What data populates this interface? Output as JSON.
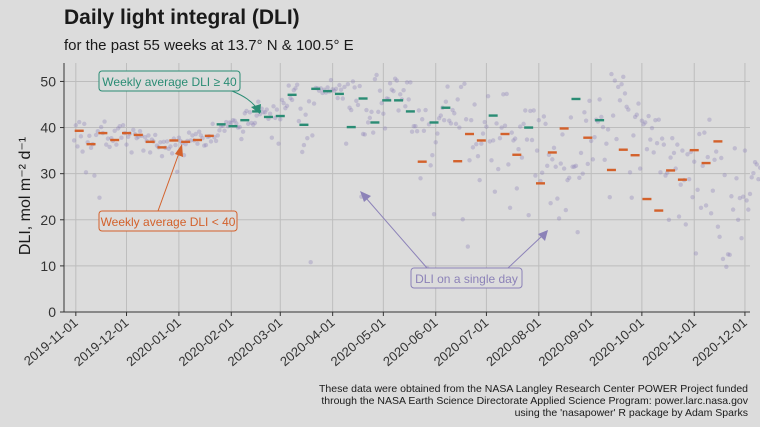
{
  "title": "Daily light integral (DLI)",
  "subtitle": "for the past 55 weeks at 13.7° N & 100.5° E",
  "caption": [
    "These data were obtained from the NASA Langley Research Center POWER Project funded",
    "through the NASA Earth Science Directorate Applied Science Program: power.larc.nasa.gov",
    "using the 'nasapower' R package by Adam Sparks"
  ],
  "colors": {
    "background": "#dcdcdc",
    "grid": "#bdbdbd",
    "high": "#2a8c74",
    "low": "#d3612b",
    "daily": "#8c82b8"
  },
  "annotations": {
    "high": "Weekly average DLI ≥ 40",
    "low": "Weekly average DLI < 40",
    "daily": "DLI on a single day"
  },
  "chart_data": {
    "type": "scatter",
    "ylabel": "DLI, mol m⁻² d⁻¹",
    "ylim": [
      0,
      54
    ],
    "yticks": [
      0,
      10,
      20,
      30,
      40,
      50
    ],
    "xlim": [
      "2019-10-25",
      "2020-12-04"
    ],
    "xticks": [
      "2019-11-01",
      "2019-12-01",
      "2020-01-01",
      "2020-02-01",
      "2020-03-01",
      "2020-04-01",
      "2020-05-01",
      "2020-06-01",
      "2020-07-01",
      "2020-08-01",
      "2020-09-01",
      "2020-10-01",
      "2020-11-01",
      "2020-12-01"
    ],
    "grid": true,
    "threshold": 40,
    "weekly_series": {
      "name": "Weekly average DLI",
      "dates": [
        "2019-11-03",
        "2019-11-10",
        "2019-11-17",
        "2019-11-24",
        "2019-12-01",
        "2019-12-08",
        "2019-12-15",
        "2019-12-22",
        "2019-12-29",
        "2020-01-05",
        "2020-01-12",
        "2020-01-19",
        "2020-01-26",
        "2020-02-02",
        "2020-02-09",
        "2020-02-16",
        "2020-02-23",
        "2020-03-01",
        "2020-03-08",
        "2020-03-15",
        "2020-03-22",
        "2020-03-29",
        "2020-04-05",
        "2020-04-12",
        "2020-04-19",
        "2020-04-26",
        "2020-05-03",
        "2020-05-10",
        "2020-05-17",
        "2020-05-24",
        "2020-05-31",
        "2020-06-07",
        "2020-06-14",
        "2020-06-21",
        "2020-06-28",
        "2020-07-05",
        "2020-07-12",
        "2020-07-19",
        "2020-07-26",
        "2020-08-02",
        "2020-08-09",
        "2020-08-16",
        "2020-08-23",
        "2020-08-30",
        "2020-09-06",
        "2020-09-13",
        "2020-09-20",
        "2020-09-27",
        "2020-10-04",
        "2020-10-11",
        "2020-10-18",
        "2020-10-25",
        "2020-11-01",
        "2020-11-08",
        "2020-11-15"
      ],
      "values": [
        39.3,
        36.4,
        38.8,
        37.3,
        38.8,
        38.4,
        36.9,
        35.7,
        37.2,
        36.9,
        37.3,
        38.2,
        40.7,
        40.3,
        41.6,
        43.5,
        42.3,
        42.5,
        47.1,
        40.6,
        48.4,
        47.9,
        47.3,
        40.1,
        46.3,
        41.1,
        45.9,
        45.9,
        43.5,
        32.6,
        41.1,
        44.3,
        32.7,
        38.6,
        37.2,
        42.6,
        38.6,
        34.1,
        40.0,
        27.9,
        34.6,
        39.8,
        46.2,
        37.8,
        41.6,
        30.8,
        35.2,
        34.0,
        24.5,
        22.0,
        30.7,
        28.7,
        35.1,
        32.3,
        37.0
      ]
    },
    "daily_series": {
      "name": "DLI on a single day",
      "start": "2019-10-31",
      "values": [
        37.2,
        40.5,
        35.9,
        41.2,
        38.1,
        34.8,
        40.8,
        30.3,
        36.8,
        38.2,
        35.6,
        36.4,
        29.6,
        38.4,
        39.2,
        24.8,
        40.1,
        38.8,
        41.3,
        36.3,
        37.6,
        35.8,
        37.7,
        37.1,
        39.3,
        36.3,
        39.8,
        40.3,
        37.8,
        40.5,
        38.8,
        36.3,
        38.0,
        38.7,
        34.6,
        39.5,
        38.6,
        37.7,
        38.0,
        39.2,
        38.2,
        35.0,
        37.9,
        37.1,
        38.3,
        34.6,
        37.4,
        37.0,
        38.4,
        36.1,
        35.7,
        36.8,
        33.8,
        36.9,
        35.6,
        37.0,
        35.4,
        35.9,
        34.4,
        37.6,
        36.2,
        30.4,
        37.8,
        37.1,
        36.6,
        34.0,
        36.4,
        37.1,
        38.9,
        37.2,
        38.3,
        37.2,
        38.6,
        36.5,
        39.1,
        38.3,
        37.7,
        36.1,
        36.2,
        38.0,
        38.1,
        37.0,
        40.8,
        37.9,
        37.1,
        38.3,
        39.4,
        40.3,
        40.4,
        39.3,
        41.2,
        40.3,
        41.1,
        41.0,
        41.6,
        41.5,
        40.9,
        40.0,
        40.1,
        37.5,
        39.1,
        43.1,
        43.6,
        40.8,
        43.3,
        41.0,
        40.6,
        41.0,
        42.6,
        45.6,
        42.9,
        44.1,
        43.3,
        43.3,
        43.9,
        41.9,
        43.0,
        37.8,
        44.6,
        42.1,
        43.9,
        36.5,
        41.8,
        46.0,
        45.3,
        44.2,
        44.7,
        49.1,
        46.4,
        46.0,
        48.1,
        48.5,
        49.3,
        41.4,
        44.1,
        34.7,
        36.2,
        42.8,
        37.7,
        45.7,
        10.8,
        38.3,
        45.2,
        48.6,
        48.5,
        48.0,
        48.5,
        47.5,
        48.2,
        47.6,
        48.7,
        47.8,
        50.3,
        48.3,
        48.0,
        48.4,
        46.4,
        49.2,
        48.2,
        46.3,
        48.8,
        36.5,
        49.4,
        44.3,
        43.8,
        50.0,
        48.7,
        45.8,
        44.9,
        49.0,
        25.0,
        38.6,
        38.5,
        43.8,
        41.1,
        42.1,
        43.4,
        38.9,
        50.5,
        51.4,
        43.4,
        48.0,
        45.3,
        43.0,
        39.8,
        46.3,
        46.2,
        49.6,
        48.2,
        47.9,
        50.6,
        50.2,
        43.7,
        47.2,
        46.1,
        48.1,
        44.6,
        49.8,
        46.1,
        49.8,
        39.1,
        40.3,
        40.3,
        39.2,
        43.7,
        29.0,
        41.8,
        39.3,
        43.8,
        9.5,
        40.7,
        31.8,
        34.0,
        21.2,
        36.8,
        38.7,
        42.0,
        42.6,
        44.3,
        41.6,
        45.6,
        48.9,
        41.5,
        40.9,
        43.8,
        43.1,
        40.8,
        46.1,
        40.0,
        48.8,
        20.1,
        49.5,
        41.8,
        14.2,
        32.9,
        41.6,
        35.7,
        45.0,
        36.4,
        33.8,
        28.6,
        36.5,
        38.7,
        41.2,
        40.2,
        46.8,
        37.0,
        32.9,
        37.2,
        26.1,
        40.9,
        31.0,
        37.7,
        40.0,
        47.2,
        40.4,
        47.3,
        32.0,
        22.6,
        38.9,
        37.2,
        37.6,
        26.8,
        35.3,
        40.2,
        33.5,
        40.8,
        43.7,
        37.4,
        21.0,
        43.6,
        37.3,
        43.7,
        29.6,
        35.0,
        41.6,
        28.4,
        30.2,
        42.4,
        40.8,
        31.7,
        34.1,
        23.6,
        33.1,
        35.6,
        31.5,
        24.6,
        20.3,
        32.2,
        38.5,
        31.1,
        22.1,
        28.6,
        29.1,
        42.2,
        31.5,
        31.5,
        31.7,
        17.3,
        29.1,
        34.5,
        30.0,
        43.3,
        41.5,
        32.1,
        45.8,
        37.1,
        33.1,
        37.9,
        41.7,
        41.3,
        46.1,
        42.3,
        40.1,
        33.0,
        36.5,
        39.6,
        24.9,
        51.6,
        42.6,
        50.2,
        37.5,
        48.8,
        45.9,
        49.4,
        51.0,
        47.4,
        44.5,
        43.9,
        30.3,
        24.8,
        38.3,
        42.3,
        42.8,
        45.2,
        31.1,
        41.5,
        40.7,
        41.1,
        35.3,
        42.5,
        37.4,
        39.9,
        34.6,
        41.6,
        36.6,
        41.7,
        30.3,
        37.6,
        36.3,
        29.6,
        30.2,
        20.0,
        33.5,
        37.7,
        34.5,
        31.1,
        36.3,
        20.7,
        27.6,
        35.0,
        28.6,
        19.0,
        34.2,
        28.8,
        34.7,
        24.9,
        32.6,
        12.7,
        26.5,
        38.6,
        22.6,
        31.7,
        38.9,
        23.1,
        33.6,
        41.7,
        21.4,
        26.3,
        33.0,
        34.8,
        18.5,
        16.3,
        33.4,
        11.5,
        29.7,
        9.8,
        12.5,
        12.4,
        25.1,
        22.2,
        35.5,
        29.0,
        20.0,
        24.7,
        16.0,
        25.0,
        35.0,
        24.2,
        22.2,
        25.6,
        29.2,
        30.1,
        32.5,
        32.0,
        28.8,
        31.3,
        28.6,
        23.7,
        34.3,
        24.5,
        29.6,
        34.4,
        32.5,
        35.6,
        40.5,
        40.2,
        37.3,
        40.4,
        33.8,
        37.0,
        15.8,
        25.0,
        36.7,
        39.9,
        38.1,
        39.9,
        38.8,
        35.9,
        39.6,
        40.2,
        39.6,
        38.5,
        38.1,
        39.3,
        40.2,
        39.4,
        40.1,
        39.6,
        34.3,
        39.6,
        26.9,
        39.7
      ]
    }
  }
}
